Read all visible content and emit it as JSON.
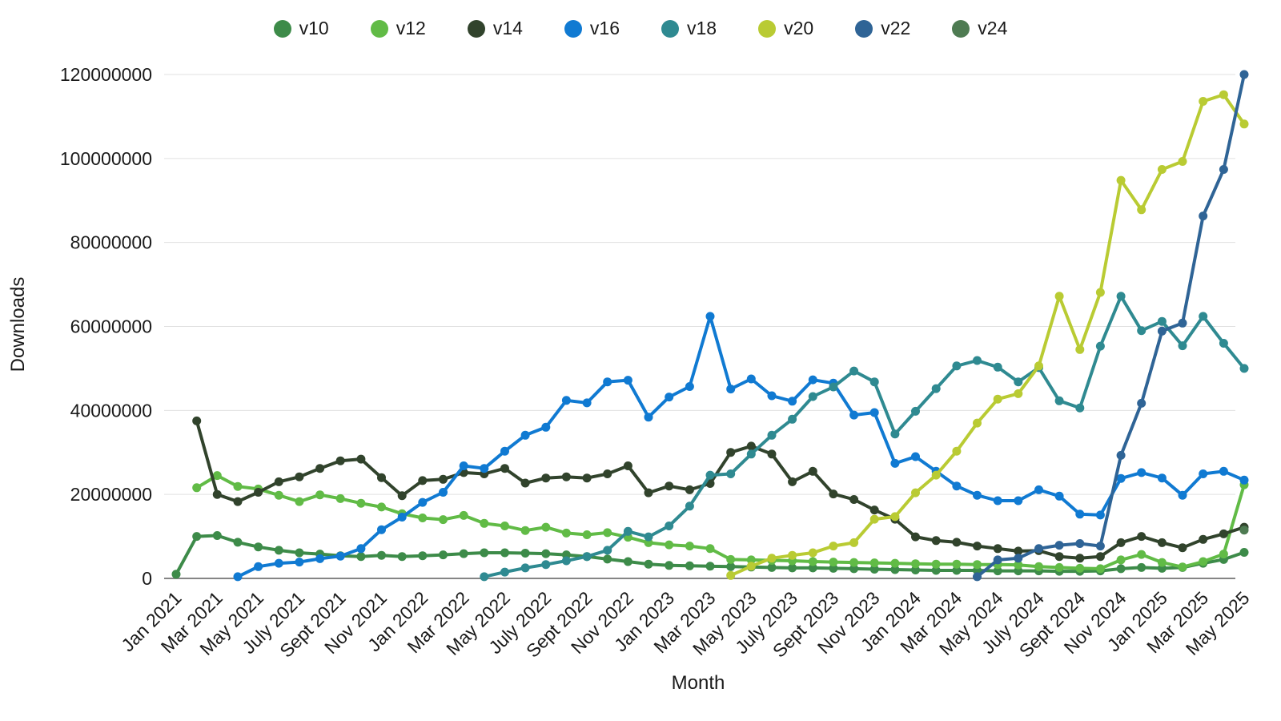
{
  "page": {
    "background": "#ffffff"
  },
  "axes": {
    "y_title": "Downloads",
    "x_title": "Month",
    "y_tick_labels": [
      "0",
      "20000000",
      "40000000",
      "60000000",
      "80000000",
      "100000000",
      "120000000"
    ]
  },
  "chart_data": {
    "type": "line",
    "title": "",
    "xlabel": "Month",
    "ylabel": "Downloads",
    "ylim": [
      0,
      120000000
    ],
    "y_tick_step": 20000000,
    "grid": "horizontal",
    "legend_position": "top-center",
    "marker": "circle",
    "values_unit": "millions of downloads",
    "value_multiplier": 1000000,
    "x": [
      "Jan 2021",
      "Feb 2021",
      "Mar 2021",
      "Apr 2021",
      "May 2021",
      "Jun 2021",
      "July 2021",
      "Aug 2021",
      "Sept 2021",
      "Oct 2021",
      "Nov 2021",
      "Dec 2021",
      "Jan 2022",
      "Feb 2022",
      "Mar 2022",
      "Apr 2022",
      "May 2022",
      "Jun 2022",
      "July 2022",
      "Aug 2022",
      "Sept 2022",
      "Oct 2022",
      "Nov 2022",
      "Dec 2022",
      "Jan 2023",
      "Feb 2023",
      "Mar 2023",
      "Apr 2023",
      "May 2023",
      "Jun 2023",
      "July 2023",
      "Aug 2023",
      "Sept 2023",
      "Oct 2023",
      "Nov 2023",
      "Dec 2023",
      "Jan 2024",
      "Feb 2024",
      "Mar 2024",
      "Apr 2024",
      "May 2024",
      "Jun 2024",
      "July 2024",
      "Aug 2024",
      "Sept 2024",
      "Oct 2024",
      "Nov 2024",
      "Dec 2024",
      "Jan 2025",
      "Feb 2025",
      "Mar 2025",
      "Apr 2025",
      "May 2025"
    ],
    "x_tick_labels_shown": [
      "Jan 2021",
      "Mar 2021",
      "May 2021",
      "July 2021",
      "Sept 2021",
      "Nov 2021",
      "Jan 2022",
      "Mar 2022",
      "May 2022",
      "July 2022",
      "Sept 2022",
      "Nov 2022",
      "Jan 2023",
      "Mar 2023",
      "May 2023",
      "July 2023",
      "Sept 2023",
      "Nov 2023",
      "Jan 2024",
      "Mar 2024",
      "May 2024",
      "July 2024",
      "Sept 2024",
      "Nov 2024",
      "Jan 2025",
      "Mar 2025",
      "May 2025"
    ],
    "series": [
      {
        "name": "v10",
        "color": "#3d8b49",
        "values": [
          1.0,
          10.0,
          10.2,
          8.6,
          7.5,
          6.7,
          6.1,
          5.8,
          5.4,
          5.2,
          5.5,
          5.2,
          5.4,
          5.6,
          5.9,
          6.1,
          6.1,
          6.0,
          5.9,
          5.6,
          5.2,
          4.6,
          4.0,
          3.4,
          3.1,
          3.0,
          2.9,
          2.8,
          2.7,
          2.6,
          2.5,
          2.5,
          2.4,
          2.3,
          2.2,
          2.1,
          2.0,
          1.9,
          1.9,
          1.9,
          1.8,
          1.8,
          1.8,
          1.7,
          1.7,
          1.8,
          2.3,
          2.6,
          2.4,
          2.6,
          3.6,
          4.5,
          6.2
        ]
      },
      {
        "name": "v12",
        "color": "#61bb46",
        "values": [
          null,
          21.6,
          24.5,
          21.9,
          21.3,
          19.8,
          18.3,
          19.9,
          19.0,
          17.9,
          17.0,
          15.4,
          14.4,
          14.0,
          15.0,
          13.1,
          12.5,
          11.4,
          12.2,
          10.8,
          10.4,
          10.9,
          9.8,
          8.5,
          8.0,
          7.7,
          7.1,
          4.5,
          4.4,
          4.3,
          4.2,
          4.0,
          3.9,
          3.8,
          3.7,
          3.6,
          3.5,
          3.4,
          3.4,
          3.3,
          3.3,
          3.2,
          2.8,
          2.6,
          2.4,
          2.3,
          4.4,
          5.7,
          3.8,
          2.7,
          4.0,
          5.8,
          22.3
        ]
      },
      {
        "name": "v14",
        "color": "#31432c",
        "values": [
          null,
          37.5,
          20.0,
          18.3,
          20.5,
          23.0,
          24.2,
          26.2,
          28.0,
          28.4,
          24.0,
          19.7,
          23.3,
          23.6,
          25.2,
          24.9,
          26.2,
          22.7,
          23.9,
          24.2,
          23.9,
          24.9,
          26.8,
          20.4,
          22.0,
          21.1,
          22.6,
          30.0,
          31.5,
          29.6,
          23.0,
          25.5,
          20.1,
          18.8,
          16.3,
          14.1,
          9.9,
          9.0,
          8.6,
          7.7,
          7.1,
          6.5,
          6.6,
          5.2,
          4.8,
          5.2,
          8.5,
          10.0,
          8.5,
          7.3,
          9.3,
          10.6,
          12.2
        ]
      },
      {
        "name": "v16",
        "color": "#107ad2",
        "values": [
          null,
          null,
          null,
          0.4,
          2.8,
          3.6,
          3.9,
          4.7,
          5.3,
          7.1,
          11.6,
          14.6,
          18.1,
          20.5,
          26.8,
          26.2,
          30.3,
          34.1,
          36.0,
          42.4,
          41.8,
          46.8,
          47.2,
          38.4,
          43.2,
          45.7,
          62.4,
          45.1,
          47.5,
          43.5,
          42.2,
          47.3,
          46.5,
          38.9,
          39.5,
          27.4,
          29.0,
          25.5,
          22.0,
          19.8,
          18.5,
          18.5,
          21.1,
          19.6,
          15.3,
          15.1,
          23.8,
          25.2,
          23.9,
          19.8,
          24.9,
          25.5,
          23.4
        ]
      },
      {
        "name": "v18",
        "color": "#2f8a91",
        "values": [
          null,
          null,
          null,
          null,
          null,
          null,
          null,
          null,
          null,
          null,
          null,
          null,
          null,
          null,
          null,
          0.4,
          1.5,
          2.5,
          3.3,
          4.2,
          5.2,
          6.7,
          11.2,
          9.9,
          12.5,
          17.2,
          24.6,
          24.9,
          29.6,
          34.1,
          37.9,
          43.3,
          45.6,
          49.4,
          46.8,
          34.4,
          39.8,
          45.2,
          50.6,
          51.9,
          50.3,
          46.8,
          50.2,
          42.3,
          40.6,
          55.3,
          67.2,
          59.0,
          61.2,
          55.4,
          62.4,
          56.0,
          50.0
        ]
      },
      {
        "name": "v20",
        "color": "#b9cb33",
        "values": [
          null,
          null,
          null,
          null,
          null,
          null,
          null,
          null,
          null,
          null,
          null,
          null,
          null,
          null,
          null,
          null,
          null,
          null,
          null,
          null,
          null,
          null,
          null,
          null,
          null,
          null,
          null,
          0.7,
          2.9,
          4.8,
          5.5,
          6.1,
          7.7,
          8.5,
          14.1,
          14.7,
          20.4,
          24.6,
          30.3,
          37.0,
          42.7,
          44.0,
          50.6,
          67.2,
          54.5,
          68.1,
          94.8,
          87.8,
          97.4,
          99.3,
          113.6,
          115.2,
          108.2
        ]
      },
      {
        "name": "v22",
        "color": "#2f6496",
        "values": [
          null,
          null,
          null,
          null,
          null,
          null,
          null,
          null,
          null,
          null,
          null,
          null,
          null,
          null,
          null,
          null,
          null,
          null,
          null,
          null,
          null,
          null,
          null,
          null,
          null,
          null,
          null,
          null,
          null,
          null,
          null,
          null,
          null,
          null,
          null,
          null,
          null,
          null,
          null,
          0.4,
          4.4,
          4.8,
          7.1,
          7.9,
          8.3,
          7.7,
          29.3,
          41.7,
          58.9,
          60.8,
          86.3,
          97.4,
          120.0
        ]
      },
      {
        "name": "v24",
        "color": "#4e7b52",
        "values": [
          null,
          null,
          null,
          null,
          null,
          null,
          null,
          null,
          null,
          null,
          null,
          null,
          null,
          null,
          null,
          null,
          null,
          null,
          null,
          null,
          null,
          null,
          null,
          null,
          null,
          null,
          null,
          null,
          null,
          null,
          null,
          null,
          null,
          null,
          null,
          null,
          null,
          null,
          null,
          null,
          null,
          null,
          null,
          null,
          null,
          null,
          null,
          null,
          null,
          null,
          null,
          null,
          11.5
        ]
      }
    ]
  }
}
